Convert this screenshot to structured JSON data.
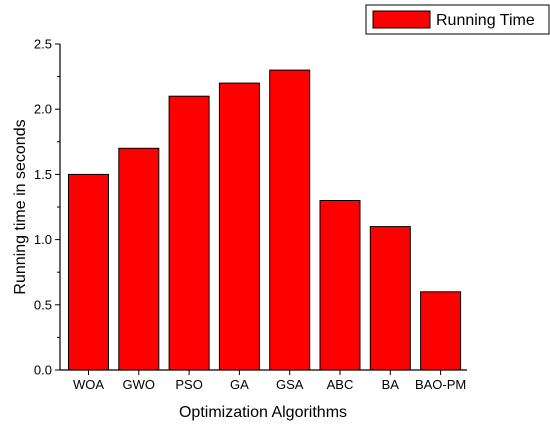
{
  "chart_data": {
    "type": "bar",
    "title": "",
    "xlabel": "Optimization Algorithms",
    "ylabel": "Running time in seconds",
    "categories": [
      "WOA",
      "GWO",
      "PSO",
      "GA",
      "GSA",
      "ABC",
      "BA",
      "BAO-PM"
    ],
    "series": [
      {
        "name": "Running Time",
        "values": [
          1.5,
          1.7,
          2.1,
          2.2,
          2.3,
          1.3,
          1.1,
          0.6
        ],
        "color": "#ff0000"
      }
    ],
    "ylim": [
      0,
      2.5
    ],
    "yticks": [
      "0.0",
      "0.5",
      "1.0",
      "1.5",
      "2.0",
      "2.5"
    ],
    "grid": false,
    "legend_position": "top-right"
  }
}
